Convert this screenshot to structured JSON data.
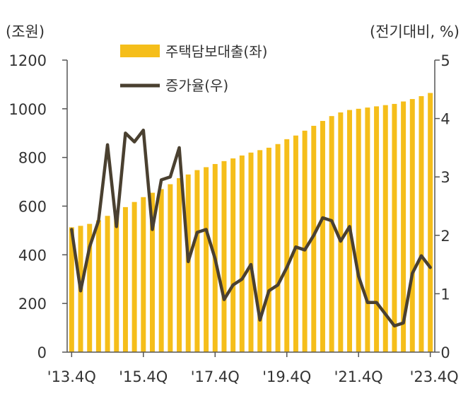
{
  "chart_data": {
    "type": "bar+line",
    "left_axis_unit": "(조원)",
    "right_axis_unit": "(전기대비, %)",
    "legend": {
      "bar_label": "주택담보대출(좌)",
      "line_label": "증가율(우)"
    },
    "colors": {
      "bar": "#F5BE1A",
      "line": "#4A4030",
      "axis": "#555555",
      "text": "#333333"
    },
    "left_axis": {
      "min": 0,
      "max": 1200,
      "ticks": [
        0,
        200,
        400,
        600,
        800,
        1000,
        1200
      ]
    },
    "right_axis": {
      "min": 0,
      "max": 5,
      "ticks": [
        0,
        1,
        2,
        3,
        4,
        5
      ]
    },
    "x_tick_labels": [
      "'13.4Q",
      "'15.4Q",
      "'17.4Q",
      "'19.4Q",
      "'21.4Q",
      "'23.4Q"
    ],
    "x_tick_index": [
      0,
      8,
      16,
      24,
      32,
      40
    ],
    "quarters": [
      "'13.4Q",
      "'14.1Q",
      "'14.2Q",
      "'14.3Q",
      "'14.4Q",
      "'15.1Q",
      "'15.2Q",
      "'15.3Q",
      "'15.4Q",
      "'16.1Q",
      "'16.2Q",
      "'16.3Q",
      "'16.4Q",
      "'17.1Q",
      "'17.2Q",
      "'17.3Q",
      "'17.4Q",
      "'18.1Q",
      "'18.2Q",
      "'18.3Q",
      "'18.4Q",
      "'19.1Q",
      "'19.2Q",
      "'19.3Q",
      "'19.4Q",
      "'20.1Q",
      "'20.2Q",
      "'20.3Q",
      "'20.4Q",
      "'21.1Q",
      "'21.2Q",
      "'21.3Q",
      "'21.4Q",
      "'22.1Q",
      "'22.2Q",
      "'22.3Q",
      "'22.4Q",
      "'23.1Q",
      "'23.2Q",
      "'23.3Q",
      "'23.4Q"
    ],
    "series": [
      {
        "name": "주택담보대출(좌)",
        "axis": "left",
        "kind": "bar",
        "values": [
          513,
          519,
          527,
          542,
          560,
          575,
          596,
          617,
          637,
          655,
          670,
          690,
          715,
          730,
          748,
          760,
          773,
          785,
          796,
          808,
          820,
          830,
          840,
          855,
          875,
          890,
          910,
          930,
          950,
          970,
          985,
          995,
          1000,
          1005,
          1010,
          1015,
          1020,
          1030,
          1040,
          1052,
          1065
        ]
      },
      {
        "name": "증가율(우)",
        "axis": "right",
        "kind": "line",
        "values": [
          2.1,
          1.05,
          1.8,
          2.25,
          3.55,
          2.15,
          3.75,
          3.6,
          3.8,
          2.1,
          2.95,
          3.0,
          3.5,
          1.55,
          2.05,
          2.1,
          1.6,
          0.9,
          1.15,
          1.25,
          1.5,
          0.55,
          1.05,
          1.15,
          1.45,
          1.8,
          1.75,
          2.0,
          2.3,
          2.25,
          1.9,
          2.15,
          1.3,
          0.85,
          0.85,
          0.65,
          0.45,
          0.5,
          1.35,
          1.65,
          1.45
        ]
      }
    ]
  }
}
